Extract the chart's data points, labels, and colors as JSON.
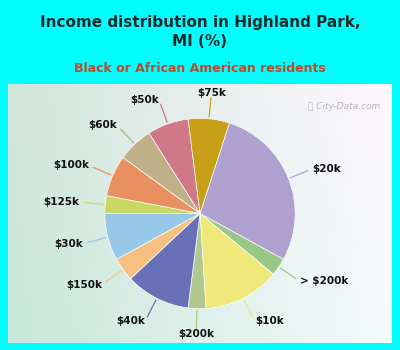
{
  "title": "Income distribution in Highland Park,\nMI (%)",
  "subtitle": "Black or African American residents",
  "bg_cyan": "#00FFFF",
  "bg_chart_color1": "#c8e8d8",
  "bg_chart_color2": "#e8f4f0",
  "labels": [
    "$20k",
    "> $200k",
    "$10k",
    "$200k",
    "$40k",
    "$150k",
    "$30k",
    "$125k",
    "$100k",
    "$60k",
    "$50k",
    "$75k"
  ],
  "values": [
    28,
    3,
    13,
    3,
    11,
    4,
    8,
    3,
    7,
    6,
    7,
    7
  ],
  "colors": [
    "#b0a0d0",
    "#98c888",
    "#f0e878",
    "#b0c890",
    "#6870b8",
    "#f8c080",
    "#98c8e8",
    "#c8d860",
    "#e89060",
    "#c0b088",
    "#d07888",
    "#c8a018"
  ],
  "line_colors": [
    "#b0a0d0",
    "#98c888",
    "#f0d050",
    "#b0c890",
    "#6870b8",
    "#f8c080",
    "#98c8e8",
    "#c8d860",
    "#e89060",
    "#c0b088",
    "#d07888",
    "#c8a018"
  ],
  "watermark": "ⓘ City-Data.com",
  "title_fontsize": 11,
  "subtitle_fontsize": 9,
  "title_color": "#1a2a2a",
  "subtitle_color": "#c04828",
  "label_fontsize": 7.5
}
